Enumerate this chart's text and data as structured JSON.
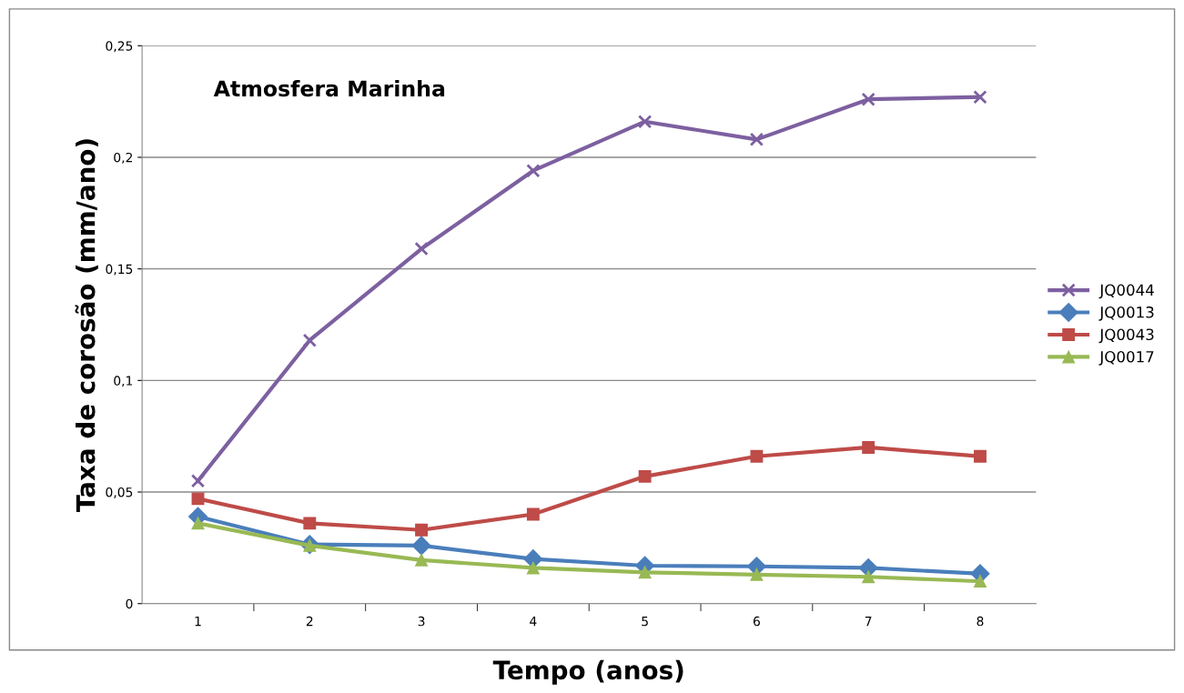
{
  "chart_data": {
    "type": "line",
    "title": "Atmosfera Marinha",
    "xlabel": "Tempo (anos)",
    "ylabel": "Taxa de corosão (mm/ano)",
    "categories": [
      "1",
      "2",
      "3",
      "4",
      "5",
      "6",
      "7",
      "8"
    ],
    "series": [
      {
        "name": "JQ0044",
        "color": "#7d60a0",
        "marker": "cross",
        "values": [
          0.055,
          0.118,
          0.159,
          0.194,
          0.216,
          0.208,
          0.226,
          0.227
        ]
      },
      {
        "name": "JQ0013",
        "color": "#4a7ebb",
        "marker": "diamond",
        "values": [
          0.039,
          0.0265,
          0.026,
          0.02,
          0.017,
          0.0167,
          0.016,
          0.0134
        ]
      },
      {
        "name": "JQ0043",
        "color": "#be4b48",
        "marker": "square",
        "values": [
          0.047,
          0.036,
          0.033,
          0.04,
          0.057,
          0.066,
          0.07,
          0.066
        ]
      },
      {
        "name": "JQ0017",
        "color": "#98b954",
        "marker": "triangle",
        "values": [
          0.036,
          0.026,
          0.0195,
          0.016,
          0.014,
          0.013,
          0.012,
          0.01
        ]
      }
    ],
    "ylim": [
      0,
      0.25
    ],
    "yticks": [
      0,
      {
        "value": 0.05,
        "label": "0,05"
      },
      {
        "value": 0.1,
        "label": "0,1"
      },
      {
        "value": 0.15,
        "label": "0,15"
      },
      {
        "value": 0.2,
        "label": "0,2"
      },
      {
        "value": 0.25,
        "label": "0,25"
      }
    ],
    "grid": "y",
    "legend": "right",
    "line_style": "solid"
  }
}
